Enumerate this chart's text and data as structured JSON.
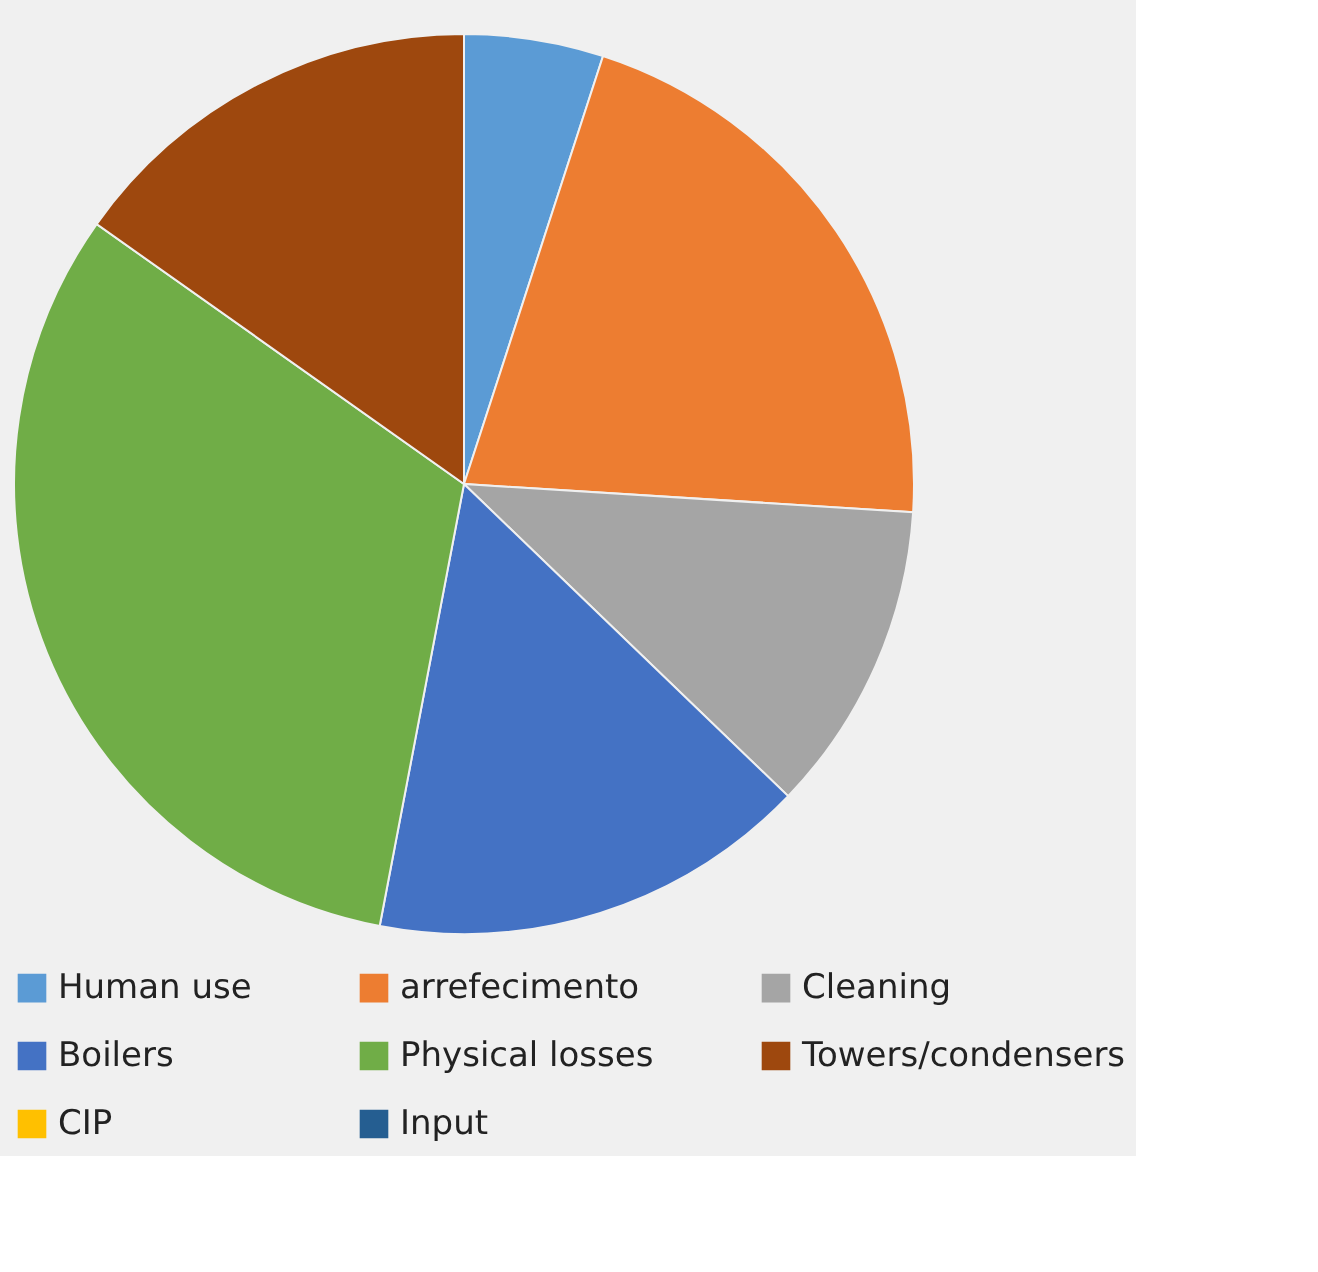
{
  "chart_data": {
    "type": "pie",
    "categories": [
      "Human use",
      "arrefecimento",
      "Cleaning",
      "Boilers",
      "Physical losses",
      "Towers/condensers",
      "CIP",
      "Input"
    ],
    "values": [
      5,
      21,
      11.2,
      15.8,
      31.8,
      15.2,
      0,
      0
    ],
    "colors": [
      "#5b9bd5",
      "#ed7d31",
      "#a5a5a5",
      "#4472c4",
      "#70ad47",
      "#9e480e",
      "#ffc000",
      "#255e91"
    ],
    "legend": "bottom"
  }
}
